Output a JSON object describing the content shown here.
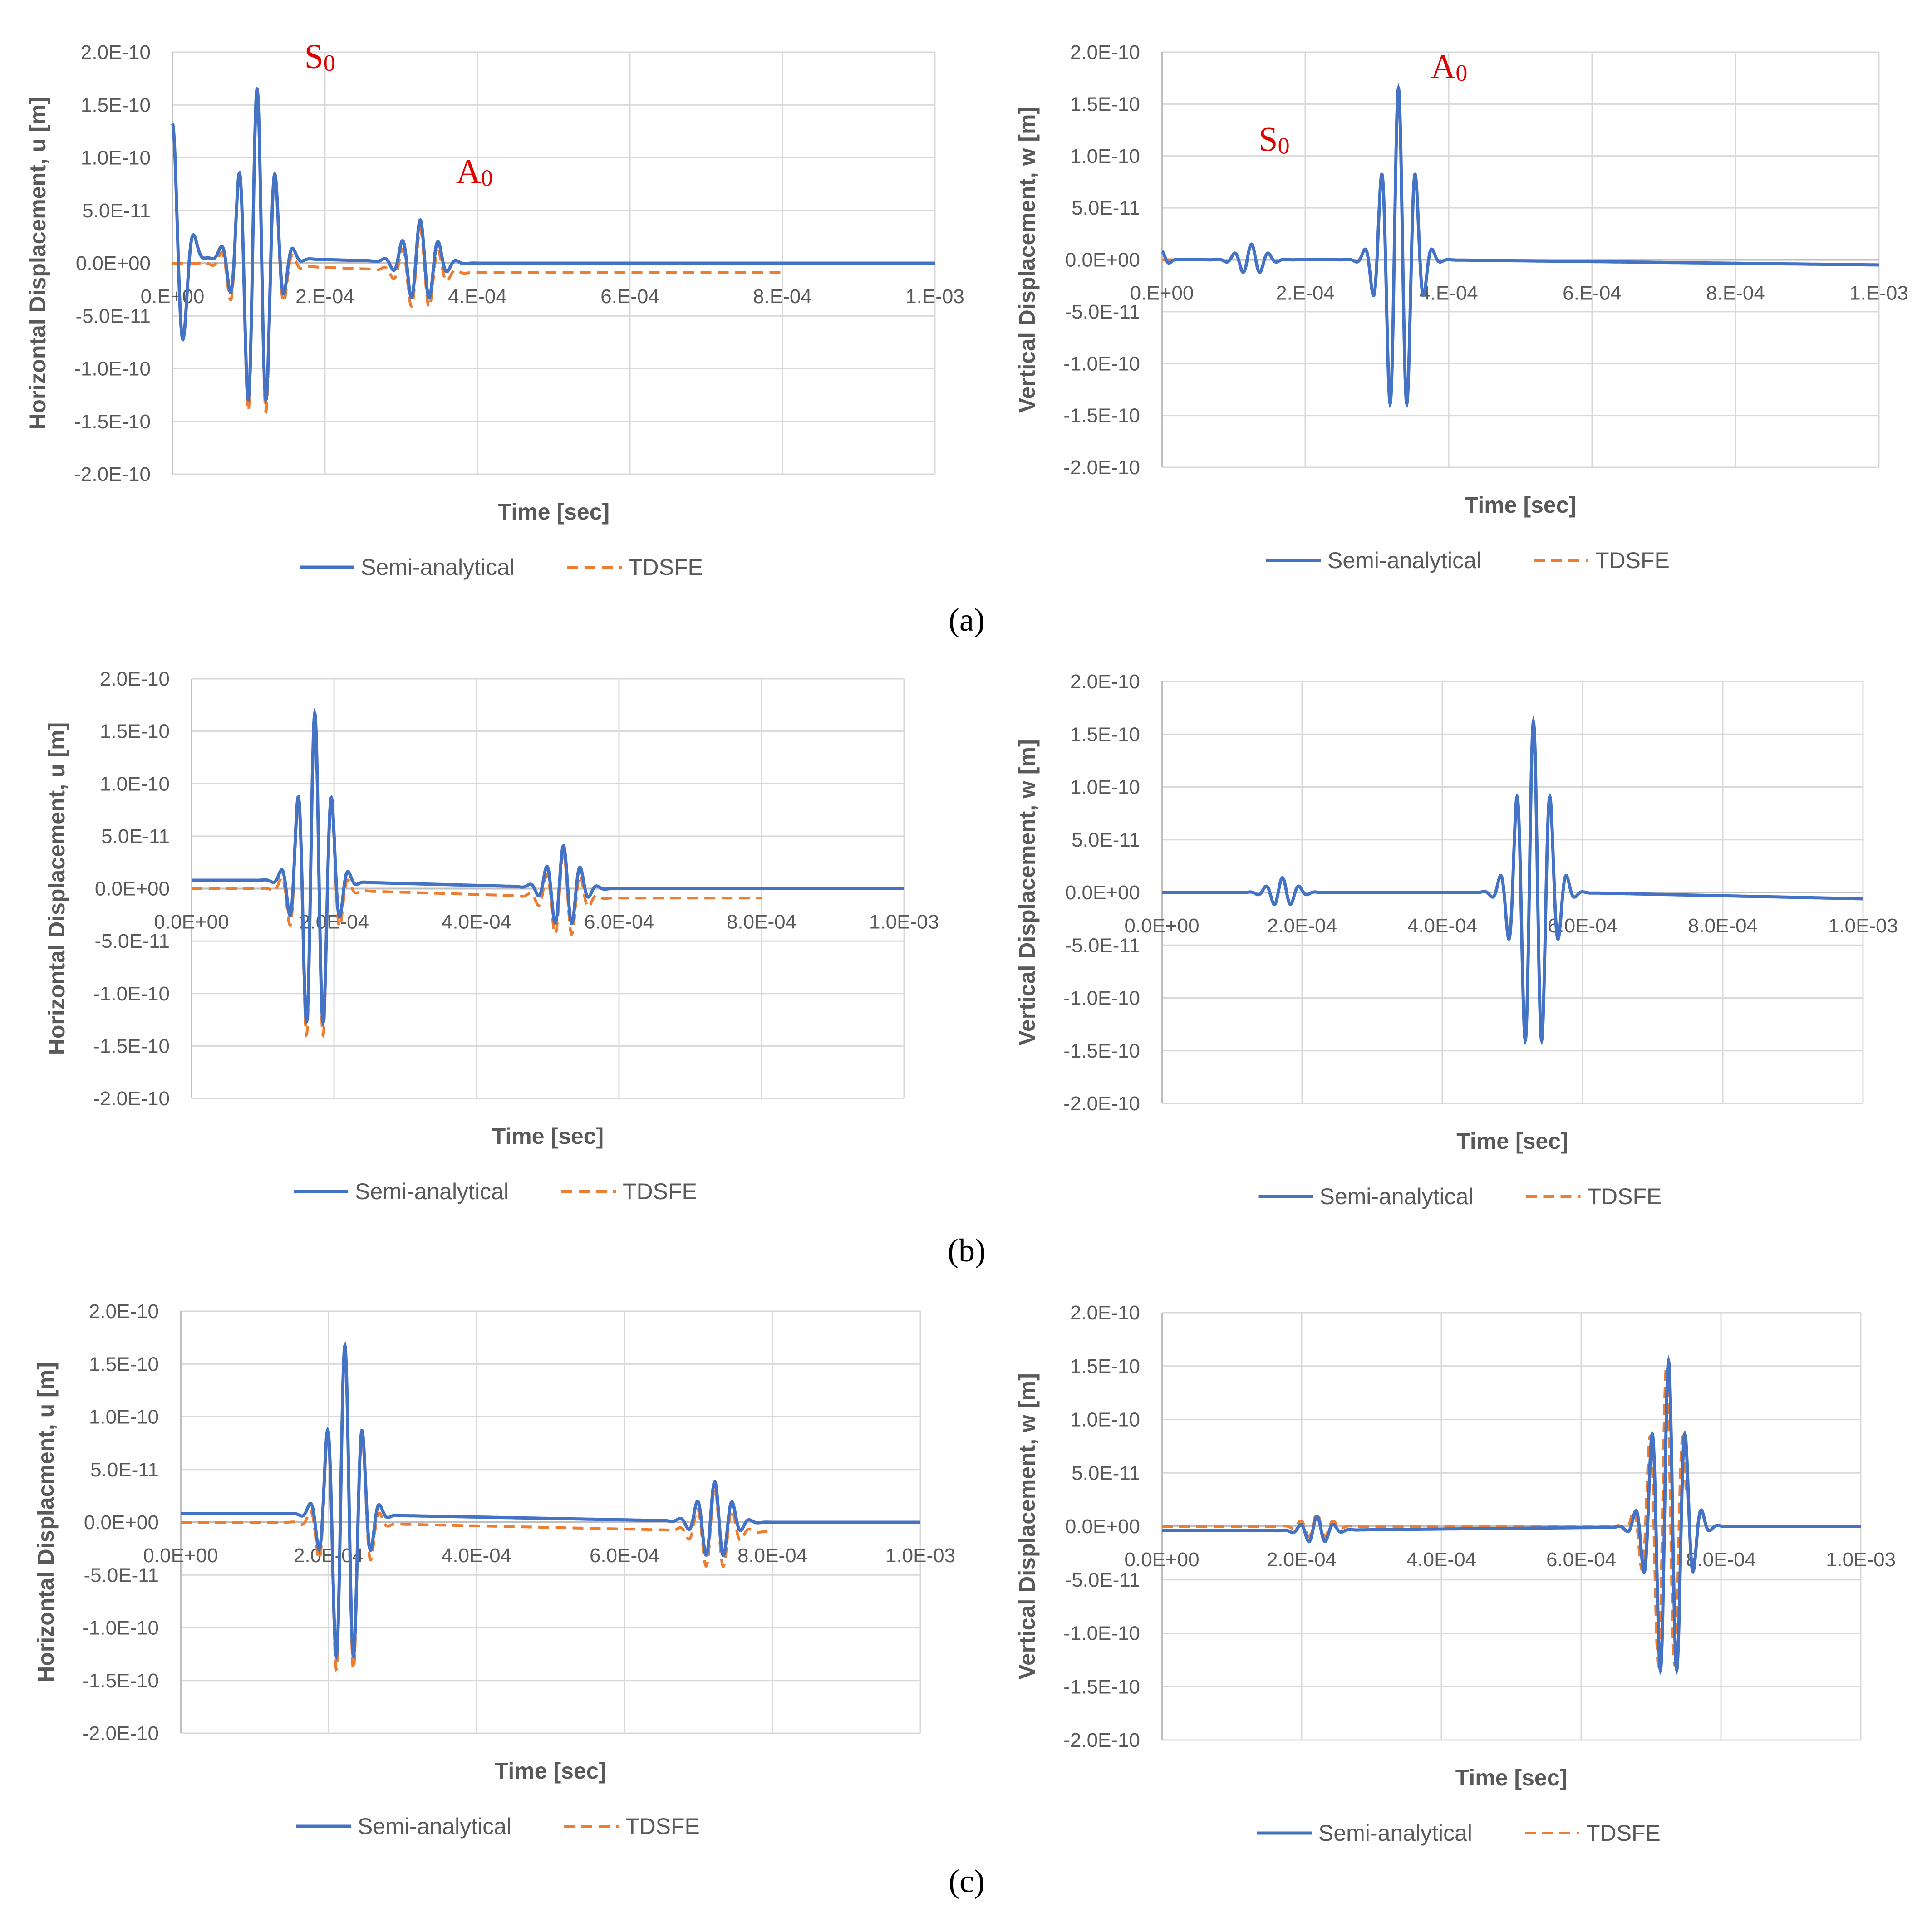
{
  "colors": {
    "semi": "#4472c4",
    "tdsfe": "#ed7d31",
    "grid": "#d9d9d9",
    "text": "#595959",
    "annotation": "#e00000"
  },
  "panel_labels": [
    "(a)",
    "(b)",
    "(c)"
  ],
  "chart_data": [
    {
      "id": "a-left",
      "type": "line",
      "xlabel": "Time [sec]",
      "ylabel": "Horizontal Displacement, u [m]",
      "xlim": [
        0,
        0.001
      ],
      "ylim": [
        -2e-10,
        2e-10
      ],
      "x_ticks": [
        "0.E+00",
        "2.E-04",
        "4.E-04",
        "6.E-04",
        "8.E-04",
        "1.E-03"
      ],
      "y_ticks": [
        "2.0E-10",
        "1.5E-10",
        "1.0E-10",
        "5.0E-11",
        "0.0E+00",
        "-5.0E-11",
        "-1.0E-10",
        "-1.5E-10",
        "-2.0E-10"
      ],
      "legend": [
        "Semi-analytical",
        "TDSFE"
      ],
      "annotations": [
        {
          "text": "S",
          "sub": "0",
          "x": 0.000173,
          "y": 1.85e-10
        },
        {
          "text": "A",
          "sub": "0",
          "x": 0.000372,
          "y": 7.6e-11
        }
      ],
      "series": [
        {
          "name": "Semi-analytical",
          "offset_before": 8e-12,
          "offset_after": 0,
          "end_value": 0,
          "packets": [
            {
              "center": 0.0,
              "amplitude": 1.25e-10,
              "period": 3e-05,
              "width": 1.5e-05
            },
            {
              "center": 0.000111,
              "amplitude": 1.6e-10,
              "period": 2.4e-05,
              "width": 2e-05
            },
            {
              "center": 0.000325,
              "amplitude": 4e-11,
              "period": 2.4e-05,
              "width": 2e-05
            }
          ]
        },
        {
          "name": "TDSFE",
          "offset_before": 0,
          "offset_after": -9e-12,
          "end_value": -9e-12,
          "x_end": 0.0008,
          "packets": [
            {
              "center": 0.000111,
              "amplitude": 1.65e-10,
              "period": 2.4e-05,
              "width": 2e-05
            },
            {
              "center": 0.000325,
              "amplitude": 4e-11,
              "period": 2.4e-05,
              "width": 2e-05
            }
          ]
        }
      ]
    },
    {
      "id": "a-right",
      "type": "line",
      "xlabel": "Time [sec]",
      "ylabel": "Vertical Displacement, w [m]",
      "xlim": [
        0,
        0.001
      ],
      "ylim": [
        -2e-10,
        2e-10
      ],
      "x_ticks": [
        "0.E+00",
        "2.E-04",
        "4.E-04",
        "6.E-04",
        "8.E-04",
        "1.E-03"
      ],
      "y_ticks": [
        "2.0E-10",
        "1.5E-10",
        "1.0E-10",
        "5.0E-11",
        "0.0E+00",
        "-5.0E-11",
        "-1.0E-10",
        "-1.5E-10",
        "-2.0E-10"
      ],
      "legend": [
        "Semi-analytical",
        "TDSFE"
      ],
      "annotations": [
        {
          "text": "S",
          "sub": "0",
          "x": 0.000135,
          "y": 1.05e-10
        },
        {
          "text": "A",
          "sub": "0",
          "x": 0.000375,
          "y": 1.75e-10
        }
      ],
      "series": [
        {
          "name": "Semi-analytical",
          "offset_before": 0,
          "offset_after": 0,
          "end_value": -5e-12,
          "packets": [
            {
              "center": 0.0,
              "amplitude": 8e-12,
              "period": 2.4e-05,
              "width": 8e-06
            },
            {
              "center": 0.000125,
              "amplitude": 1.5e-11,
              "period": 2.4e-05,
              "width": 1.8e-05
            },
            {
              "center": 0.00033,
              "amplitude": 1.65e-10,
              "period": 2.4e-05,
              "width": 2e-05
            }
          ]
        },
        {
          "name": "TDSFE",
          "offset_before": 0,
          "offset_after": 0,
          "end_value": -5e-12,
          "packets": [
            {
              "center": 0.000125,
              "amplitude": 1.4e-11,
              "period": 2.4e-05,
              "width": 1.8e-05
            },
            {
              "center": 0.00033,
              "amplitude": 1.62e-10,
              "period": 2.4e-05,
              "width": 2e-05
            }
          ]
        }
      ]
    },
    {
      "id": "b-left",
      "type": "line",
      "xlabel": "Time [sec]",
      "ylabel": "Horizontal Displacement, u [m]",
      "xlim": [
        0,
        0.001
      ],
      "ylim": [
        -2e-10,
        2e-10
      ],
      "x_ticks": [
        "0.0E+00",
        "2.0E-04",
        "4.0E-04",
        "6.0E-04",
        "8.0E-04",
        "1.0E-03"
      ],
      "y_ticks": [
        "2.0E-10",
        "1.5E-10",
        "1.0E-10",
        "5.0E-11",
        "0.0E+00",
        "-5.0E-11",
        "-1.0E-10",
        "-1.5E-10",
        "-2.0E-10"
      ],
      "legend": [
        "Semi-analytical",
        "TDSFE"
      ],
      "annotations": [],
      "series": [
        {
          "name": "Semi-analytical",
          "offset_before": 8e-12,
          "offset_after": 0,
          "end_value": 0,
          "packets": [
            {
              "center": 0.000173,
              "amplitude": 1.6e-10,
              "period": 2.4e-05,
              "width": 2e-05
            },
            {
              "center": 0.000522,
              "amplitude": 4e-11,
              "period": 2.4e-05,
              "width": 2e-05
            }
          ]
        },
        {
          "name": "TDSFE",
          "offset_before": 0,
          "offset_after": -9e-12,
          "end_value": -9e-12,
          "x_end": 0.0008,
          "packets": [
            {
              "center": 0.000173,
              "amplitude": 1.65e-10,
              "period": 2.4e-05,
              "width": 2e-05
            },
            {
              "center": 0.000522,
              "amplitude": 4.2e-11,
              "period": 2.4e-05,
              "width": 2e-05
            }
          ]
        }
      ]
    },
    {
      "id": "b-right",
      "type": "line",
      "xlabel": "Time [sec]",
      "ylabel": "Vertical Displacement, w [m]",
      "xlim": [
        0,
        0.001
      ],
      "ylim": [
        -2e-10,
        2e-10
      ],
      "x_ticks": [
        "0.0E+00",
        "2.0E-04",
        "4.0E-04",
        "6.0E-04",
        "8.0E-04",
        "1.0E-03"
      ],
      "y_ticks": [
        "2.0E-10",
        "1.5E-10",
        "1.0E-10",
        "5.0E-11",
        "0.0E+00",
        "-5.0E-11",
        "-1.0E-10",
        "-1.5E-10",
        "-2.0E-10"
      ],
      "legend": [
        "Semi-analytical",
        "TDSFE"
      ],
      "annotations": [],
      "series": [
        {
          "name": "Semi-analytical",
          "offset_before": 0,
          "offset_after": 0,
          "end_value": -6e-12,
          "packets": [
            {
              "center": 0.000172,
              "amplitude": 1.4e-11,
              "period": 2.4e-05,
              "width": 1.8e-05
            },
            {
              "center": 0.00053,
              "amplitude": 1.62e-10,
              "period": 2.4e-05,
              "width": 2.2e-05
            }
          ]
        },
        {
          "name": "TDSFE",
          "offset_before": 0,
          "offset_after": 0,
          "end_value": 0,
          "x_end": 0.0006,
          "packets": [
            {
              "center": 0.000172,
              "amplitude": 1.3e-11,
              "period": 2.4e-05,
              "width": 1.8e-05
            },
            {
              "center": 0.00053,
              "amplitude": 1.55e-10,
              "period": 2.4e-05,
              "width": 2.2e-05
            }
          ]
        }
      ]
    },
    {
      "id": "c-left",
      "type": "line",
      "xlabel": "Time [sec]",
      "ylabel": "Horizontal Displacment, u [m]",
      "xlim": [
        0,
        0.001
      ],
      "ylim": [
        -2e-10,
        2e-10
      ],
      "x_ticks": [
        "0.0E+00",
        "2.0E-04",
        "4.0E-04",
        "6.0E-04",
        "8.0E-04",
        "1.0E-03"
      ],
      "y_ticks": [
        "2.0E-10",
        "1.5E-10",
        "1.0E-10",
        "5.0E-11",
        "0.0E+00",
        "-5.0E-11",
        "-1.0E-10",
        "-1.5E-10",
        "-2.0E-10"
      ],
      "legend": [
        "Semi-analytical",
        "TDSFE"
      ],
      "annotations": [],
      "series": [
        {
          "name": "Semi-analytical",
          "offset_before": 8e-12,
          "offset_after": 0,
          "end_value": 0,
          "packets": [
            {
              "center": 0.000222,
              "amplitude": 1.6e-10,
              "period": 2.4e-05,
              "width": 2e-05
            },
            {
              "center": 0.000722,
              "amplitude": 3.8e-11,
              "period": 2.4e-05,
              "width": 2e-05
            }
          ]
        },
        {
          "name": "TDSFE",
          "offset_before": 0,
          "offset_after": -9e-12,
          "end_value": -9e-12,
          "x_end": 0.0008,
          "packets": [
            {
              "center": 0.000222,
              "amplitude": 1.65e-10,
              "period": 2.4e-05,
              "width": 2e-05
            },
            {
              "center": 0.000722,
              "amplitude": 4e-11,
              "period": 2.4e-05,
              "width": 2e-05
            }
          ]
        }
      ]
    },
    {
      "id": "c-right",
      "type": "line",
      "xlabel": "Time [sec]",
      "ylabel": "Vertical Displacement, w [m]",
      "xlim": [
        0,
        0.001
      ],
      "ylim": [
        -2e-10,
        2e-10
      ],
      "x_ticks": [
        "0.0E+00",
        "2.0E-04",
        "4.0E-04",
        "6.0E-04",
        "8.0E-04",
        "1.0E-03"
      ],
      "y_ticks": [
        "2.0E-10",
        "1.5E-10",
        "1.0E-10",
        "5.0E-11",
        "0.0E+00",
        "-5.0E-11",
        "-1.0E-10",
        "-1.5E-10",
        "-2.0E-10"
      ],
      "legend": [
        "Semi-analytical",
        "TDSFE"
      ],
      "annotations": [],
      "series": [
        {
          "name": "Semi-analytical",
          "offset_before": -4e-12,
          "offset_after": 0,
          "end_value": 0,
          "packets": [
            {
              "center": 0.000222,
              "amplitude": 1.3e-11,
              "period": 2.4e-05,
              "width": 1.8e-05
            },
            {
              "center": 0.000725,
              "amplitude": 1.55e-10,
              "period": 2.4e-05,
              "width": 2.2e-05
            }
          ]
        },
        {
          "name": "TDSFE",
          "offset_before": 0,
          "offset_after": 0,
          "end_value": 0,
          "x_end": 0.00075,
          "packets": [
            {
              "center": 0.000222,
              "amplitude": 1.2e-11,
              "period": 2.4e-05,
              "width": 1.8e-05
            },
            {
              "center": 0.000722,
              "amplitude": 1.5e-10,
              "period": 2.4e-05,
              "width": 2.2e-05
            }
          ]
        }
      ]
    }
  ]
}
